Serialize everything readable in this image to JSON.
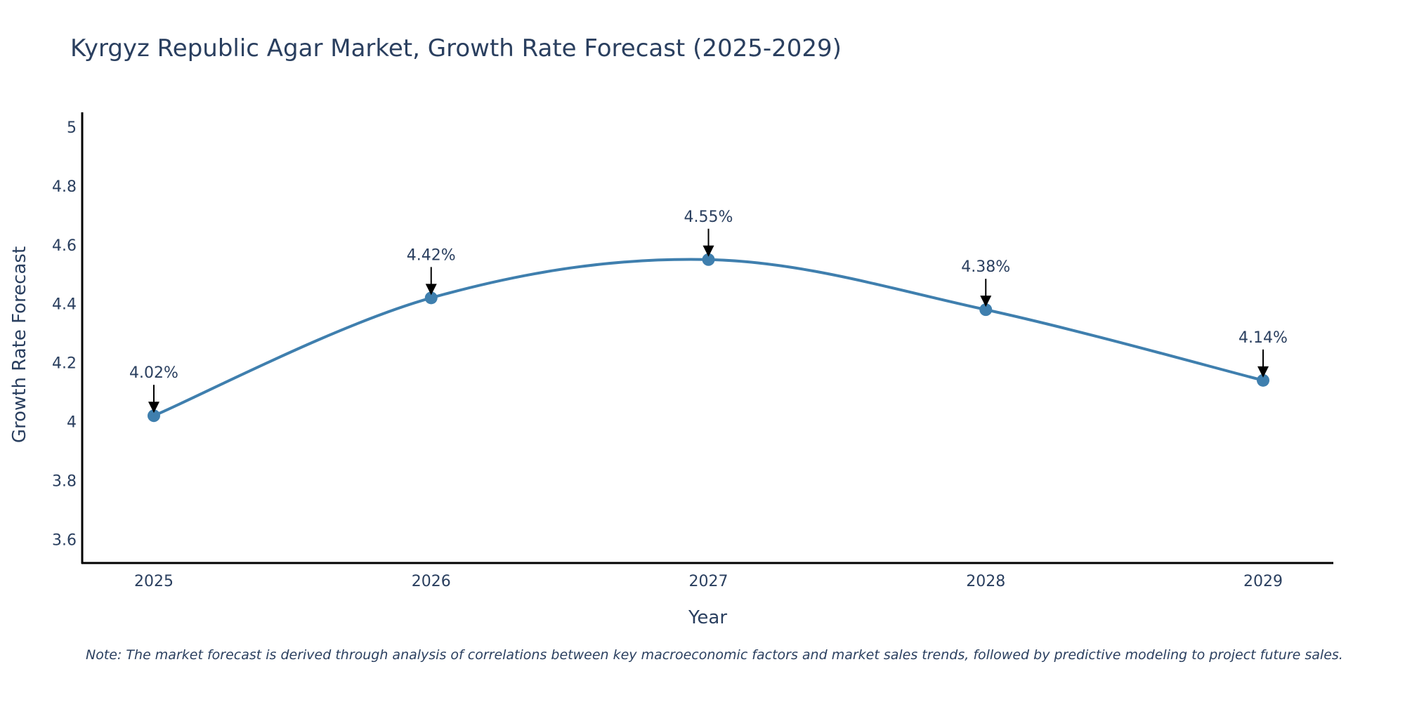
{
  "colors": {
    "line": "#3f7fae",
    "marker": "#3f7fae",
    "axis": "#000000",
    "text": "#2a3f5f",
    "arrow": "#000000"
  },
  "chart_data": {
    "type": "line",
    "title": "Kyrgyz Republic Agar Market, Growth Rate Forecast (2025-2029)",
    "xlabel": "Year",
    "ylabel": "Growth Rate Forecast",
    "categories": [
      "2025",
      "2026",
      "2027",
      "2028",
      "2029"
    ],
    "series": [
      {
        "name": "Growth Rate Forecast",
        "values": [
          4.02,
          4.42,
          4.55,
          4.38,
          4.14
        ]
      }
    ],
    "data_labels": [
      "4.02%",
      "4.42%",
      "4.55%",
      "4.38%",
      "4.14%"
    ],
    "ylim": [
      3.52,
      5.05
    ],
    "yticks": [
      3.6,
      3.8,
      4,
      4.2,
      4.4,
      4.6,
      4.8,
      5
    ],
    "ytick_labels": [
      "3.6",
      "3.8",
      "4",
      "4.2",
      "4.4",
      "4.6",
      "4.8",
      "5"
    ],
    "grid": false,
    "line_shape": "spline",
    "note": "Note: The market forecast is derived through analysis of correlations between key macroeconomic factors and market sales trends, followed by predictive modeling to project future sales."
  }
}
